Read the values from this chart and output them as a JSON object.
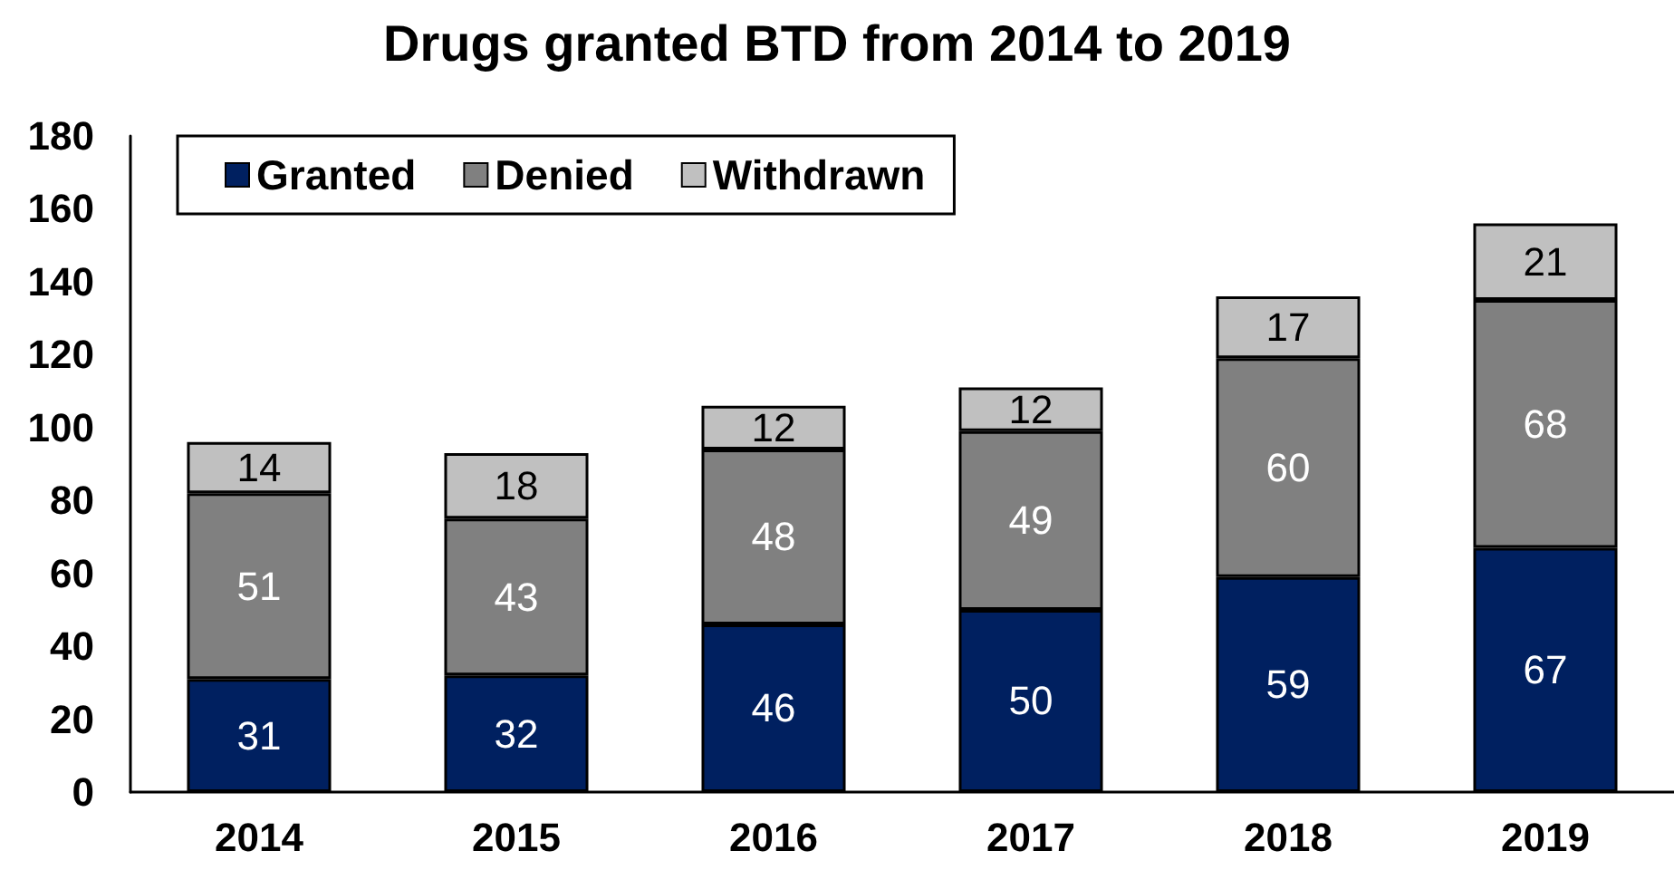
{
  "chart_data": {
    "type": "bar",
    "title": "Drugs granted BTD from 2014 to 2019",
    "categories": [
      "2014",
      "2015",
      "2016",
      "2017",
      "2018",
      "2019"
    ],
    "series": [
      {
        "name": "Granted",
        "color": "#002060",
        "values": [
          31,
          32,
          46,
          50,
          59,
          67
        ]
      },
      {
        "name": "Denied",
        "color": "#808080",
        "values": [
          51,
          43,
          48,
          49,
          60,
          68
        ]
      },
      {
        "name": "Withdrawn",
        "color": "#c0c0c0",
        "values": [
          14,
          18,
          12,
          12,
          17,
          21
        ]
      }
    ],
    "stacked": true,
    "ylim": [
      0,
      180
    ],
    "yticks": [
      0,
      20,
      40,
      60,
      80,
      100,
      120,
      140,
      160,
      180
    ],
    "grid": false,
    "legend": "top left",
    "data_labels": true
  }
}
